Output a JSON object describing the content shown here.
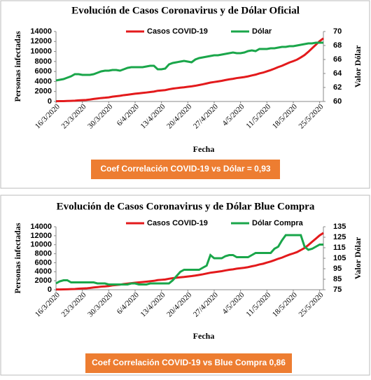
{
  "chart_data": [
    {
      "type": "line",
      "title": "Evolución  de Casos Coronavirus  y de Dólar Oficial",
      "x_label": "Fecha",
      "y_label": "Personas infectadas",
      "y2_label": "Valor Dólar",
      "annotation": "Coef Correlación COVID-19 vs Dólar = 0,93",
      "legend": "top",
      "categories": [
        "16/3/2020",
        null,
        null,
        null,
        null,
        null,
        null,
        "23/3/2020",
        null,
        null,
        null,
        null,
        null,
        null,
        "30/3/2020",
        null,
        null,
        null,
        null,
        null,
        null,
        "6/4/2020",
        null,
        null,
        null,
        null,
        null,
        null,
        "13/4/2020",
        null,
        null,
        null,
        null,
        null,
        null,
        "20/4/2020",
        null,
        null,
        null,
        null,
        null,
        null,
        "27/4/2020",
        null,
        null,
        null,
        null,
        null,
        null,
        "4/5/2020",
        null,
        null,
        null,
        null,
        null,
        null,
        "11/5/2020",
        null,
        null,
        null,
        null,
        null,
        null,
        "18/5/2020",
        null,
        null,
        null,
        null,
        null,
        null,
        "25/5/2020",
        null
      ],
      "ylim": [
        0,
        14000
      ],
      "yticks": [
        0,
        2000,
        4000,
        6000,
        8000,
        10000,
        12000,
        14000
      ],
      "y2lim": [
        60,
        70
      ],
      "y2ticks": [
        60,
        62,
        64,
        66,
        68,
        70
      ],
      "series": [
        {
          "name": "Casos  COVID-19",
          "color": "#e31a1c",
          "values": [
            56,
            65,
            79,
            97,
            128,
            158,
            225,
            266,
            301,
            387,
            502,
            589,
            690,
            745,
            820,
            966,
            1054,
            1133,
            1265,
            1353,
            1451,
            1554,
            1628,
            1715,
            1795,
            1894,
            1975,
            2142,
            2208,
            2277,
            2443,
            2571,
            2669,
            2758,
            2839,
            2941,
            3031,
            3144,
            3288,
            3435,
            3607,
            3780,
            3892,
            4003,
            4127,
            4285,
            4428,
            4532,
            4681,
            4783,
            4887,
            5020,
            5208,
            5371,
            5611,
            5776,
            6034,
            6278,
            6563,
            6879,
            7134,
            7479,
            7805,
            8068,
            8371,
            8809,
            9283,
            9931,
            10649,
            11353,
            12076,
            12628
          ]
        },
        {
          "name": "Dólar",
          "color": "#1aa64a",
          "axis": "y2",
          "values": [
            63.0,
            63.1,
            63.2,
            63.4,
            63.6,
            63.9,
            63.9,
            63.8,
            63.8,
            63.8,
            63.9,
            64.1,
            64.3,
            64.4,
            64.4,
            64.5,
            64.5,
            64.4,
            64.6,
            64.8,
            64.9,
            64.9,
            64.9,
            64.9,
            65.0,
            65.1,
            65.1,
            64.6,
            64.6,
            64.7,
            65.3,
            65.5,
            65.6,
            65.7,
            65.8,
            65.7,
            65.6,
            66.0,
            66.2,
            66.3,
            66.4,
            66.5,
            66.6,
            66.6,
            66.7,
            66.8,
            66.9,
            67.0,
            66.9,
            66.9,
            67.0,
            67.2,
            67.3,
            67.2,
            67.5,
            67.5,
            67.5,
            67.6,
            67.6,
            67.7,
            67.8,
            67.8,
            67.9,
            67.9,
            68.0,
            68.1,
            68.2,
            68.3,
            68.3,
            68.4,
            68.4,
            68.4
          ]
        }
      ]
    },
    {
      "type": "line",
      "title": "Evolución  de Casos Coronavirus  y de Dólar Blue Compra",
      "x_label": "Fecha",
      "y_label": "Personas infectadas",
      "y2_label": "Valor Dólar",
      "annotation": "Coef Correlación COVID-19 vs Blue Compra 0,86",
      "legend": "top",
      "categories": [
        "16/3/2020",
        null,
        null,
        null,
        null,
        null,
        null,
        "23/3/2020",
        null,
        null,
        null,
        null,
        null,
        null,
        "30/3/2020",
        null,
        null,
        null,
        null,
        null,
        null,
        "6/4/2020",
        null,
        null,
        null,
        null,
        null,
        null,
        "13/4/2020",
        null,
        null,
        null,
        null,
        null,
        null,
        "20/4/2020",
        null,
        null,
        null,
        null,
        null,
        null,
        "27/4/2020",
        null,
        null,
        null,
        null,
        null,
        null,
        "4/5/2020",
        null,
        null,
        null,
        null,
        null,
        null,
        "11/5/2020",
        null,
        null,
        null,
        null,
        null,
        null,
        "18/5/2020",
        null,
        null,
        null,
        null,
        null,
        null,
        "25/5/2020",
        null
      ],
      "ylim": [
        0,
        14000
      ],
      "yticks": [
        0,
        2000,
        4000,
        6000,
        8000,
        10000,
        12000,
        14000
      ],
      "y2lim": [
        75,
        135
      ],
      "y2ticks": [
        75,
        85,
        95,
        105,
        115,
        125,
        135
      ],
      "series": [
        {
          "name": "Casos  COVID-19",
          "color": "#e31a1c",
          "values": [
            56,
            65,
            79,
            97,
            128,
            158,
            225,
            266,
            301,
            387,
            502,
            589,
            690,
            745,
            820,
            966,
            1054,
            1133,
            1265,
            1353,
            1451,
            1554,
            1628,
            1715,
            1795,
            1894,
            1975,
            2142,
            2208,
            2277,
            2443,
            2571,
            2669,
            2758,
            2839,
            2941,
            3031,
            3144,
            3288,
            3435,
            3607,
            3780,
            3892,
            4003,
            4127,
            4285,
            4428,
            4532,
            4681,
            4783,
            4887,
            5020,
            5208,
            5371,
            5611,
            5776,
            6034,
            6278,
            6563,
            6879,
            7134,
            7479,
            7805,
            8068,
            8371,
            8809,
            9283,
            9931,
            10649,
            11353,
            12076,
            12628
          ]
        },
        {
          "name": "Dólar Compra",
          "color": "#1aa64a",
          "axis": "y2",
          "values": [
            81,
            83,
            84,
            84,
            82,
            82,
            82,
            82,
            82,
            82,
            82,
            81,
            81,
            81,
            80,
            80,
            80,
            80,
            80,
            80,
            81,
            81,
            80,
            80,
            80,
            81,
            81,
            81,
            81,
            81,
            81,
            84,
            88,
            92,
            94,
            94,
            94,
            94,
            94,
            96,
            98,
            108,
            105,
            105,
            105,
            107,
            108,
            108,
            106,
            106,
            106,
            106,
            108,
            110,
            110,
            110,
            110,
            110,
            114,
            116,
            122,
            127,
            127,
            127,
            127,
            127,
            116,
            113,
            114,
            116,
            118,
            118
          ]
        }
      ]
    }
  ]
}
